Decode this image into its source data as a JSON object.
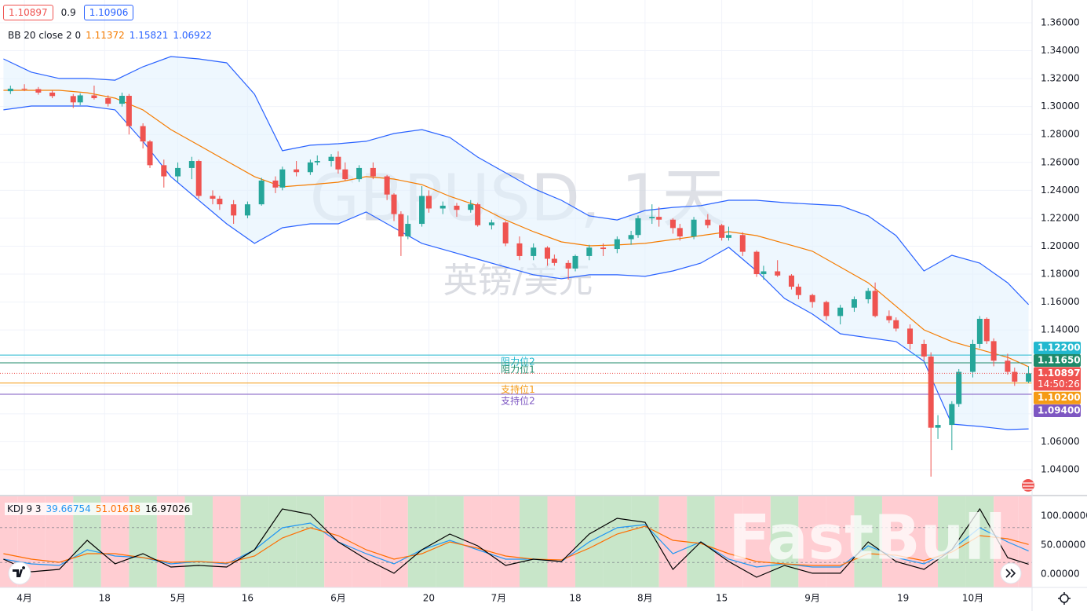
{
  "watermark": "FastBull",
  "header": {
    "bid": "1.10897",
    "spread": 0.9,
    "ask": 1.10906
  },
  "chart_data": [
    {
      "type": "candlestick",
      "title": "GBPUSD, 1天",
      "subtitle": "英镑/美元",
      "up_color": "#26a69a",
      "down_color": "#ef5350",
      "xlim": [
        -0.5,
        147.5
      ],
      "ylim": [
        1.022,
        1.3763
      ],
      "xticks": [
        {
          "value": 3,
          "label": "4月"
        },
        {
          "value": 14.5,
          "label": "18"
        },
        {
          "value": 25,
          "label": "5月"
        },
        {
          "value": 35,
          "label": "16"
        },
        {
          "value": 48,
          "label": "6月"
        },
        {
          "value": 61,
          "label": "20"
        },
        {
          "value": 71,
          "label": "7月"
        },
        {
          "value": 82,
          "label": "18"
        },
        {
          "value": 92,
          "label": "8月"
        },
        {
          "value": 103,
          "label": "15"
        },
        {
          "value": 116,
          "label": "9月"
        },
        {
          "value": 129,
          "label": "19"
        },
        {
          "value": 139,
          "label": "10月"
        }
      ],
      "yticks": [
        {
          "value": 1.36,
          "label": "1.36000"
        },
        {
          "value": 1.34,
          "label": "1.34000"
        },
        {
          "value": 1.32,
          "label": "1.32000"
        },
        {
          "value": 1.3,
          "label": "1.30000"
        },
        {
          "value": 1.28,
          "label": "1.28000"
        },
        {
          "value": 1.26,
          "label": "1.26000"
        },
        {
          "value": 1.24,
          "label": "1.24000"
        },
        {
          "value": 1.22,
          "label": "1.22000"
        },
        {
          "value": 1.2,
          "label": "1.20000"
        },
        {
          "value": 1.18,
          "label": "1.18000"
        },
        {
          "value": 1.16,
          "label": "1.16000"
        },
        {
          "value": 1.14,
          "label": "1.14000"
        },
        {
          "value": 1.12,
          "label": "1.12000"
        },
        {
          "value": 1.1,
          "label": "1.10000"
        },
        {
          "value": 1.08,
          "label": "1.08000"
        },
        {
          "value": 1.06,
          "label": "1.06000"
        },
        {
          "value": 1.04,
          "label": "1.04000"
        }
      ],
      "grid": true,
      "x": [
        1,
        3,
        5,
        7,
        10,
        11,
        13,
        15,
        17,
        18,
        20,
        21,
        23,
        25,
        27,
        28,
        30,
        31,
        33,
        35,
        37,
        39,
        40,
        42,
        44,
        45,
        47,
        48,
        49,
        51,
        53,
        55,
        56,
        57,
        58,
        60,
        61,
        63,
        65,
        67,
        68,
        70,
        72,
        74,
        76,
        78,
        79,
        81,
        82,
        84,
        86,
        88,
        90,
        91,
        93,
        94,
        96,
        97,
        99,
        101,
        103,
        104,
        106,
        108,
        109,
        111,
        113,
        114,
        116,
        118,
        120,
        122,
        124,
        125,
        127,
        128,
        130,
        132,
        133,
        134,
        136,
        137,
        139,
        140,
        141,
        142,
        144,
        145,
        147
      ],
      "open": [
        1.311,
        1.3128,
        1.3125,
        1.31,
        1.3075,
        1.303,
        1.308,
        1.306,
        1.302,
        1.3077,
        1.286,
        1.275,
        1.258,
        1.25,
        1.256,
        1.261,
        1.236,
        1.234,
        1.23,
        1.222,
        1.23,
        1.247,
        1.242,
        1.255,
        1.253,
        1.26,
        1.261,
        1.264,
        1.255,
        1.248,
        1.256,
        1.25,
        1.237,
        1.223,
        1.207,
        1.216,
        1.236,
        1.227,
        1.229,
        1.226,
        1.23,
        1.215,
        1.217,
        1.202,
        1.193,
        1.199,
        1.191,
        1.188,
        1.184,
        1.193,
        1.199,
        1.198,
        1.205,
        1.208,
        1.22,
        1.221,
        1.219,
        1.213,
        1.207,
        1.219,
        1.215,
        1.206,
        1.208,
        1.196,
        1.18,
        1.182,
        1.179,
        1.171,
        1.165,
        1.16,
        1.15,
        1.156,
        1.162,
        1.168,
        1.15,
        1.147,
        1.141,
        1.13,
        1.121,
        1.07,
        1.072,
        1.087,
        1.11,
        1.13,
        1.148,
        1.132,
        1.118,
        1.11,
        1.103
      ],
      "high": [
        1.315,
        1.316,
        1.314,
        1.3115,
        1.309,
        1.3095,
        1.315,
        1.308,
        1.31,
        1.309,
        1.288,
        1.276,
        1.262,
        1.26,
        1.264,
        1.262,
        1.24,
        1.236,
        1.233,
        1.232,
        1.249,
        1.25,
        1.257,
        1.261,
        1.262,
        1.265,
        1.266,
        1.268,
        1.26,
        1.258,
        1.26,
        1.251,
        1.238,
        1.225,
        1.222,
        1.243,
        1.24,
        1.232,
        1.231,
        1.233,
        1.231,
        1.219,
        1.218,
        1.207,
        1.202,
        1.2,
        1.194,
        1.19,
        1.194,
        1.201,
        1.202,
        1.207,
        1.211,
        1.222,
        1.23,
        1.228,
        1.22,
        1.216,
        1.221,
        1.223,
        1.216,
        1.214,
        1.21,
        1.197,
        1.186,
        1.19,
        1.18,
        1.173,
        1.166,
        1.161,
        1.158,
        1.164,
        1.17,
        1.174,
        1.154,
        1.149,
        1.144,
        1.133,
        1.124,
        1.079,
        1.089,
        1.112,
        1.133,
        1.15,
        1.149,
        1.134,
        1.123,
        1.113,
        1.114
      ],
      "low": [
        1.309,
        1.311,
        1.3085,
        1.306,
        1.299,
        1.301,
        1.305,
        1.3,
        1.3,
        1.28,
        1.27,
        1.256,
        1.242,
        1.246,
        1.248,
        1.234,
        1.23,
        1.226,
        1.216,
        1.22,
        1.229,
        1.238,
        1.24,
        1.25,
        1.251,
        1.258,
        1.257,
        1.252,
        1.247,
        1.246,
        1.248,
        1.233,
        1.218,
        1.193,
        1.205,
        1.214,
        1.224,
        1.223,
        1.221,
        1.224,
        1.214,
        1.212,
        1.2,
        1.19,
        1.19,
        1.186,
        1.186,
        1.176,
        1.182,
        1.19,
        1.193,
        1.195,
        1.201,
        1.206,
        1.216,
        1.214,
        1.209,
        1.204,
        1.205,
        1.213,
        1.204,
        1.204,
        1.193,
        1.178,
        1.176,
        1.178,
        1.169,
        1.162,
        1.156,
        1.147,
        1.144,
        1.153,
        1.159,
        1.149,
        1.145,
        1.139,
        1.126,
        1.118,
        1.035,
        1.062,
        1.054,
        1.085,
        1.106,
        1.127,
        1.13,
        1.114,
        1.108,
        1.1,
        1.102
      ],
      "close": [
        1.3128,
        1.3125,
        1.31,
        1.3075,
        1.303,
        1.308,
        1.306,
        1.302,
        1.3077,
        1.286,
        1.275,
        1.258,
        1.25,
        1.256,
        1.261,
        1.236,
        1.234,
        1.23,
        1.222,
        1.23,
        1.247,
        1.242,
        1.255,
        1.253,
        1.26,
        1.261,
        1.264,
        1.255,
        1.248,
        1.256,
        1.25,
        1.237,
        1.223,
        1.207,
        1.216,
        1.236,
        1.227,
        1.229,
        1.226,
        1.23,
        1.215,
        1.217,
        1.202,
        1.193,
        1.199,
        1.191,
        1.188,
        1.184,
        1.193,
        1.199,
        1.198,
        1.205,
        1.208,
        1.22,
        1.221,
        1.219,
        1.213,
        1.207,
        1.219,
        1.215,
        1.206,
        1.208,
        1.196,
        1.18,
        1.182,
        1.179,
        1.171,
        1.165,
        1.16,
        1.15,
        1.156,
        1.162,
        1.168,
        1.15,
        1.147,
        1.141,
        1.13,
        1.121,
        1.07,
        1.072,
        1.087,
        1.11,
        1.13,
        1.148,
        1.132,
        1.118,
        1.11,
        1.103,
        1.10897
      ],
      "current": {
        "label": "1.10897",
        "countdown": "14:50:26",
        "color": "#ef5350"
      },
      "bb": {
        "label": "BB 20 close 2 0",
        "fill": "#e3f2fd",
        "x": [
          0,
          4,
          8,
          12,
          16,
          20,
          24,
          28,
          32,
          36,
          40,
          44,
          48,
          52,
          56,
          60,
          64,
          68,
          72,
          76,
          80,
          84,
          88,
          92,
          96,
          100,
          104,
          108,
          112,
          116,
          120,
          124,
          128,
          132,
          136,
          140,
          144,
          147
        ],
        "basis": {
          "color": "#f57c00",
          "last": 1.11372,
          "values": [
            1.3116,
            1.3116,
            1.3116,
            1.3099,
            1.306,
            1.2976,
            1.2835,
            1.2723,
            1.261,
            1.2498,
            1.2425,
            1.2441,
            1.2458,
            1.2498,
            1.2481,
            1.2441,
            1.2357,
            1.229,
            1.2188,
            1.2104,
            1.2031,
            1.2003,
            1.2009,
            1.202,
            1.2048,
            1.2076,
            1.2104,
            1.2076,
            1.202,
            1.1964,
            1.1851,
            1.1738,
            1.157,
            1.1401,
            1.1317,
            1.126,
            1.1204,
            1.1137
          ]
        },
        "upper": {
          "color": "#2962ff",
          "last": 1.15821,
          "values": [
            1.3341,
            1.3246,
            1.3201,
            1.3201,
            1.3189,
            1.3285,
            1.3358,
            1.3341,
            1.3313,
            1.3088,
            1.2684,
            1.2723,
            1.2734,
            1.2751,
            1.2807,
            1.2835,
            1.2779,
            1.2638,
            1.2526,
            1.2413,
            1.2329,
            1.2217,
            1.2188,
            1.2256,
            1.2278,
            1.229,
            1.2329,
            1.2329,
            1.2312,
            1.2301,
            1.229,
            1.2217,
            1.2076,
            1.1823,
            1.1935,
            1.1879,
            1.1738,
            1.1582
          ]
        },
        "lower": {
          "color": "#2962ff",
          "last": 1.06922,
          "values": [
            1.2976,
            1.3004,
            1.3004,
            1.3004,
            1.2976,
            1.2751,
            1.2498,
            1.2329,
            1.216,
            1.202,
            1.2132,
            1.216,
            1.216,
            1.2245,
            1.2132,
            1.202,
            1.1964,
            1.1907,
            1.1851,
            1.1795,
            1.1767,
            1.1795,
            1.1795,
            1.1784,
            1.1823,
            1.1879,
            1.1992,
            1.1823,
            1.1626,
            1.1514,
            1.1373,
            1.1345,
            1.1317,
            1.1176,
            1.0726,
            1.0709,
            1.0687,
            1.0692
          ]
        }
      },
      "levels": [
        {
          "value": 1.122,
          "label": "1.12200",
          "name": "阻力位2",
          "color": "#22b8cf"
        },
        {
          "value": 1.1165,
          "label": "1.11650",
          "name": "阻力位1",
          "color": "#1e8a6a"
        },
        {
          "value": 1.102,
          "label": "1.10200",
          "name": "支持位1",
          "color": "#f59b15"
        },
        {
          "value": 1.094,
          "label": "1.09400",
          "name": "支持位2",
          "color": "#7e57c2"
        }
      ]
    },
    {
      "type": "line",
      "label": "KDJ 9 3",
      "ylim": [
        -23,
        133.8
      ],
      "yticks": [
        {
          "value": 100,
          "label": "100.00000"
        },
        {
          "value": 50,
          "label": "50.00000"
        },
        {
          "value": 0,
          "label": "0.00000"
        }
      ],
      "levels": [
        80,
        20
      ],
      "up_fill": "#c8e6c9",
      "down_fill": "#ffcdd2",
      "x": [
        0,
        4,
        8,
        12,
        16,
        20,
        24,
        28,
        32,
        36,
        40,
        44,
        48,
        52,
        56,
        60,
        64,
        68,
        72,
        76,
        80,
        84,
        88,
        92,
        96,
        100,
        104,
        108,
        112,
        116,
        120,
        124,
        128,
        132,
        136,
        140,
        144,
        147
      ],
      "series": [
        {
          "color": "#2196f3",
          "last": 39.66754,
          "values": [
            25.7,
            17.6,
            14.9,
            41.9,
            31.1,
            28.4,
            17.6,
            21.6,
            17.6,
            41.9,
            79.7,
            87.8,
            55.4,
            35.1,
            17.6,
            41.9,
            58.1,
            41.9,
            25.7,
            25.7,
            21.6,
            55.4,
            79.7,
            85.1,
            35.1,
            55.4,
            25.7,
            12.2,
            17.6,
            12.2,
            12.2,
            48.6,
            28.4,
            17.6,
            41.9,
            79.7,
            55.4,
            39.7
          ]
        },
        {
          "color": "#ff6d00",
          "last": 51.01618,
          "values": [
            35.1,
            25.7,
            20.3,
            35.1,
            35.1,
            28.4,
            20.3,
            21.6,
            18.9,
            31.1,
            62.2,
            79.7,
            66.2,
            41.9,
            25.7,
            35.1,
            55.4,
            44.6,
            31.1,
            25.7,
            24.3,
            44.6,
            68.9,
            82.4,
            58.1,
            52.7,
            35.1,
            21.6,
            17.6,
            14.9,
            14.9,
            35.1,
            32.4,
            23.0,
            37.8,
            66.2,
            60.8,
            51.0
          ]
        },
        {
          "color": "#000000",
          "last": 16.97026,
          "values": [
            25.7,
            4.1,
            8.1,
            58.1,
            17.6,
            35.1,
            12.2,
            14.9,
            12.2,
            41.9,
            112.2,
            102.7,
            55.4,
            25.7,
            1.4,
            41.9,
            68.9,
            48.6,
            14.9,
            25.7,
            21.6,
            68.9,
            95.9,
            89.2,
            8.1,
            55.4,
            21.6,
            -5.4,
            14.9,
            1.4,
            1.4,
            55.4,
            21.6,
            8.1,
            41.9,
            112.2,
            28.4,
            17.0
          ]
        }
      ]
    }
  ]
}
